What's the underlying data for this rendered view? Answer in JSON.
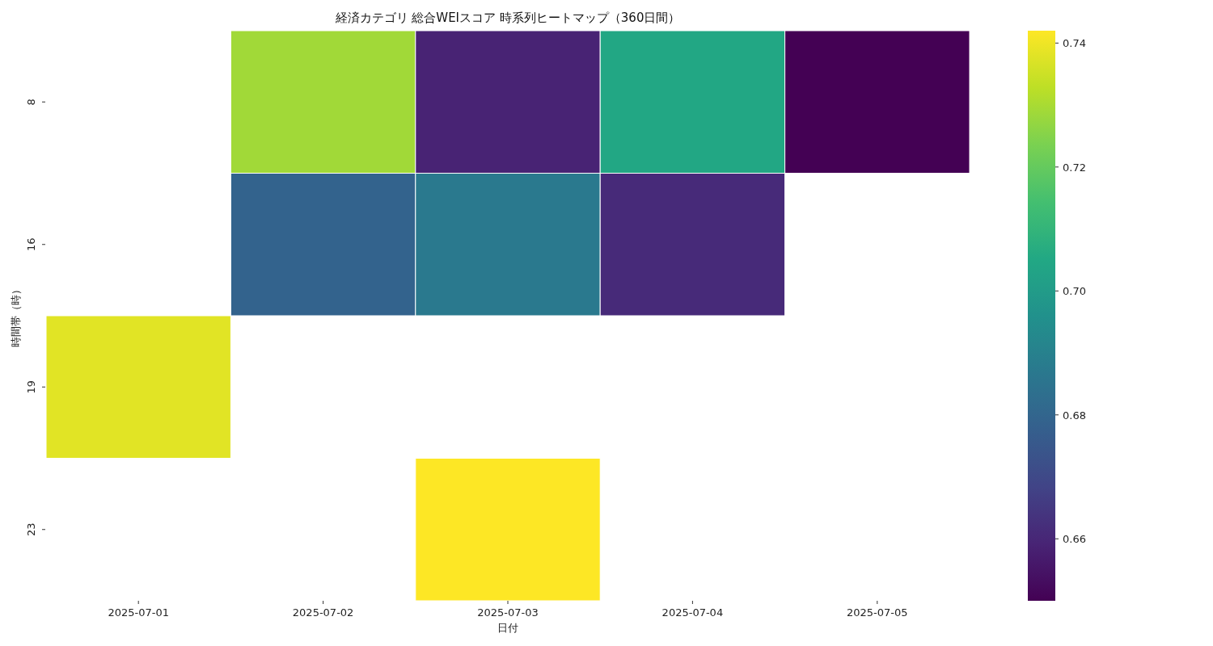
{
  "chart_data": {
    "type": "heatmap",
    "title": "経済カテゴリ 総合WEIスコア 時系列ヒートマップ（360日間）",
    "xlabel": "日付",
    "ylabel": "時間帯（時）",
    "categories": [
      "2025-07-01",
      "2025-07-02",
      "2025-07-03",
      "2025-07-04",
      "2025-07-05"
    ],
    "y_categories": [
      "8",
      "16",
      "19",
      "23"
    ],
    "cells": [
      [
        null,
        0.729,
        0.659,
        0.705,
        0.65
      ],
      [
        null,
        0.679,
        0.687,
        0.661,
        null
      ],
      [
        0.738,
        null,
        null,
        null,
        null
      ],
      [
        null,
        null,
        0.742,
        null,
        null
      ]
    ],
    "clim": [
      0.65,
      0.742
    ],
    "cticks": [
      0.66,
      0.68,
      {
        "value": 0.7,
        "label": "0.70"
      },
      0.72,
      0.74
    ]
  }
}
